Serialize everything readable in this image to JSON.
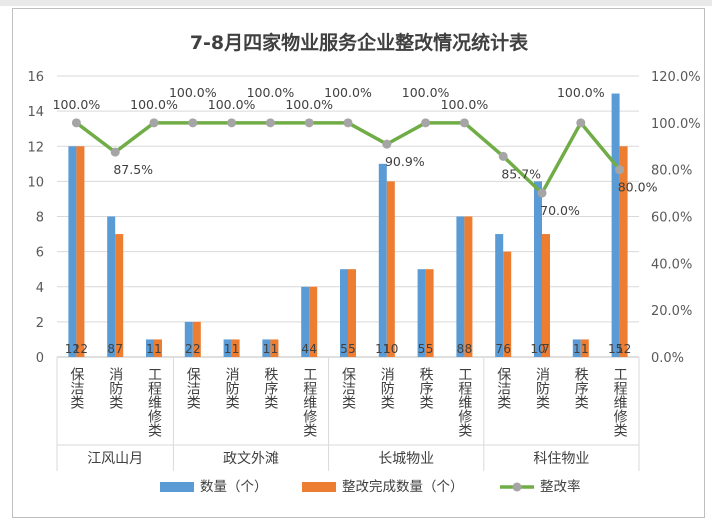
{
  "chart_data": {
    "type": "bar",
    "title": "7-8月四家物业服务企业整改情况统计表",
    "groups": [
      "江风山月",
      "政文外滩",
      "长城物业",
      "科住物业"
    ],
    "categories": [
      "保洁类",
      "消防类",
      "工程维修类",
      "保洁类",
      "消防类",
      "秩序类",
      "工程维修类",
      "保洁类",
      "消防类",
      "秩序类",
      "工程维修类",
      "保洁类",
      "消防类",
      "秩序类",
      "工程维修类"
    ],
    "category_group": [
      0,
      0,
      0,
      1,
      1,
      1,
      1,
      2,
      2,
      2,
      2,
      3,
      3,
      3,
      3
    ],
    "series": [
      {
        "name": "数量（个）",
        "values": [
          12,
          8,
          1,
          2,
          1,
          1,
          4,
          5,
          11,
          5,
          8,
          7,
          10,
          1,
          15
        ],
        "color": "#5b9bd5",
        "axis": "left"
      },
      {
        "name": "整改完成数量（个）",
        "values": [
          12,
          7,
          1,
          2,
          1,
          1,
          4,
          5,
          10,
          5,
          8,
          6,
          7,
          1,
          12
        ],
        "color": "#ed7d31",
        "axis": "left"
      },
      {
        "name": "整改率",
        "values": [
          100.0,
          87.5,
          100.0,
          100.0,
          100.0,
          100.0,
          100.0,
          100.0,
          90.9,
          100.0,
          100.0,
          85.7,
          70.0,
          100.0,
          80.0
        ],
        "labels": [
          "100.0%",
          "87.5%",
          "100.0%",
          "100.0%",
          "100.0%",
          "100.0%",
          "100.0%",
          "100.0%",
          "90.9%",
          "100.0%",
          "100.0%",
          "85.7%",
          "70.0%",
          "100.0%",
          "80.0%"
        ],
        "color": "#70ad47",
        "axis": "right",
        "type": "line"
      }
    ],
    "y_left": {
      "min": 0,
      "max": 16,
      "ticks": [
        "0",
        "2",
        "4",
        "6",
        "8",
        "10",
        "12",
        "14",
        "16"
      ]
    },
    "y_right": {
      "min": 0,
      "max": 120,
      "ticks": [
        "0.0%",
        "20.0%",
        "40.0%",
        "60.0%",
        "80.0%",
        "100.0%",
        "120.0%"
      ]
    },
    "grid": true,
    "legend": "bottom"
  }
}
